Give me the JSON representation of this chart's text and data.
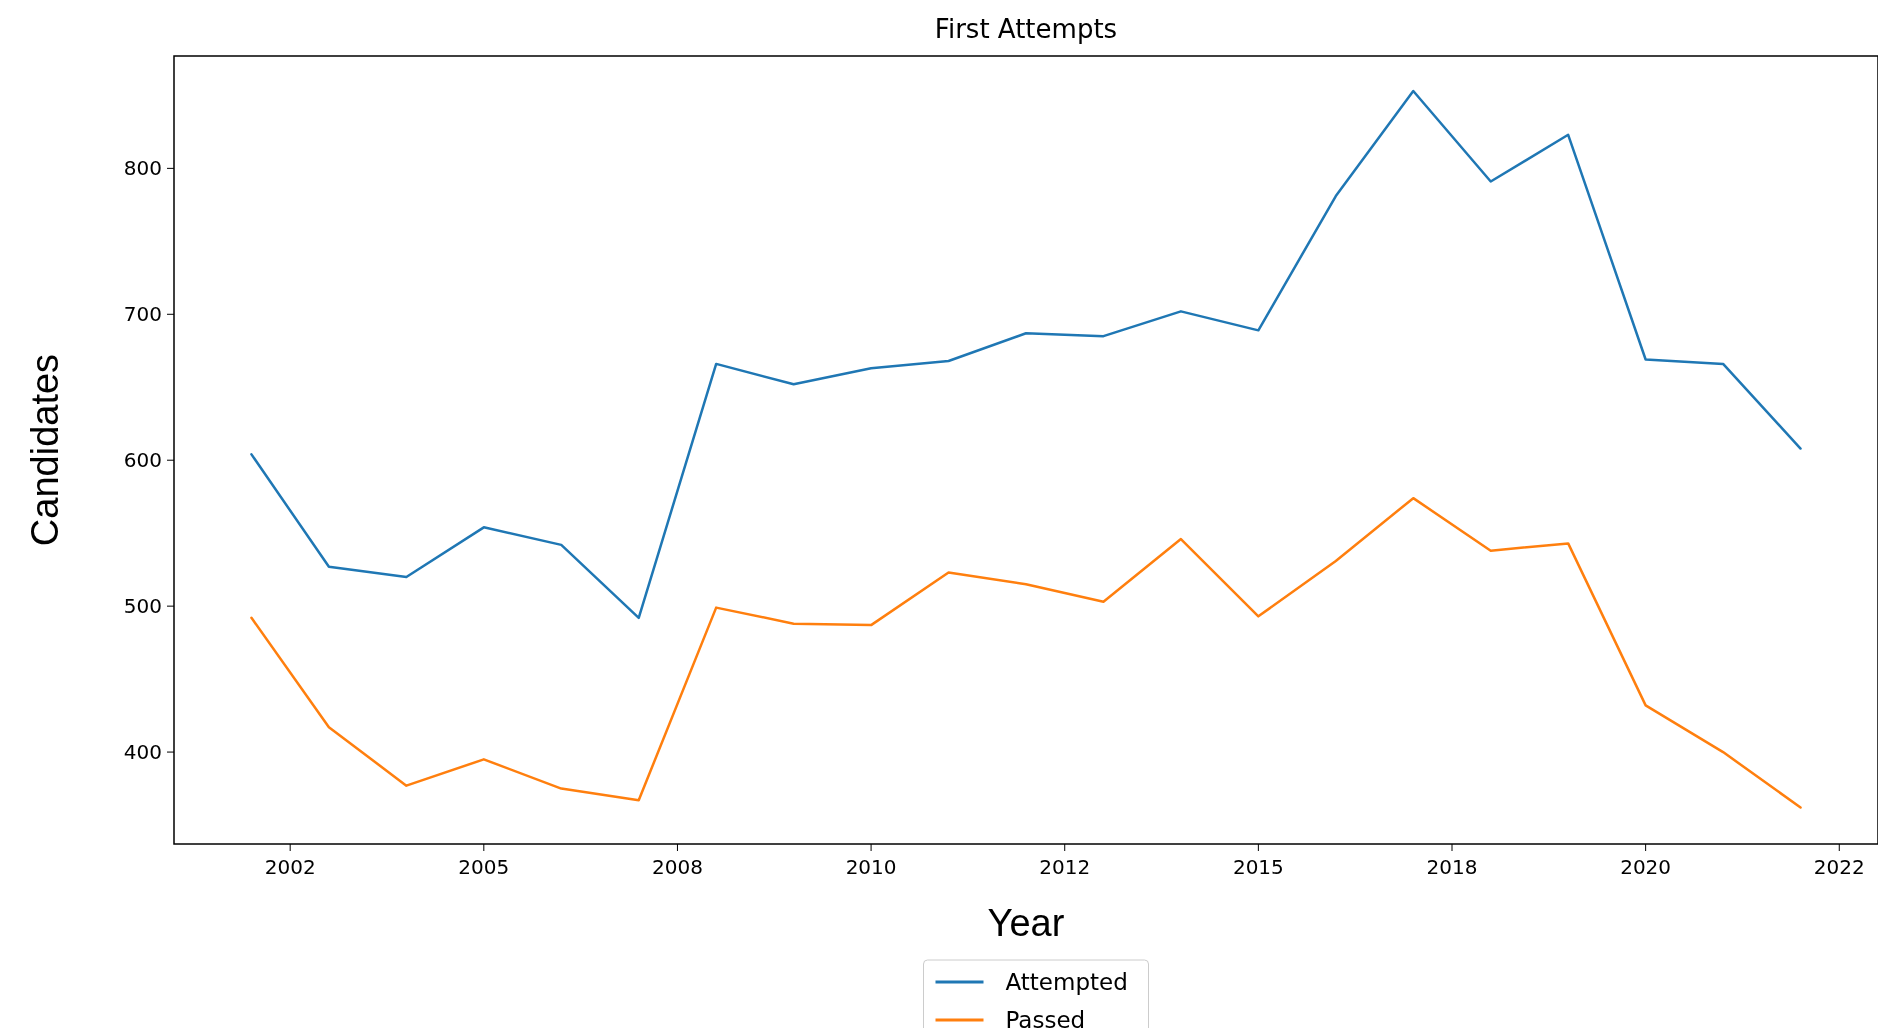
{
  "chart_data": {
    "type": "line",
    "title": "First Attempts",
    "xlabel": "Year",
    "ylabel": "Candidates",
    "x": [
      2002,
      2003,
      2004,
      2005,
      2006,
      2007,
      2008,
      2009,
      2010,
      2011,
      2012,
      2013,
      2014,
      2015,
      2016,
      2017,
      2018,
      2019,
      2020,
      2021,
      2022
    ],
    "series": [
      {
        "name": "Attempted",
        "color": "#1f77b4",
        "values": [
          604,
          527,
          520,
          554,
          542,
          492,
          666,
          652,
          663,
          668,
          687,
          685,
          702,
          689,
          781,
          853,
          791,
          823,
          669,
          666,
          608
        ]
      },
      {
        "name": "Passed",
        "color": "#ff7f0e",
        "values": [
          492,
          417,
          377,
          395,
          375,
          367,
          499,
          488,
          487,
          523,
          515,
          503,
          546,
          493,
          531,
          574,
          538,
          543,
          432,
          400,
          362
        ]
      }
    ],
    "xlim": [
      2001,
      2023
    ],
    "xticks": [
      {
        "value": 2002.5,
        "label": "2002"
      },
      2005,
      {
        "value": 2007.5,
        "label": "2008"
      },
      2010,
      {
        "value": 2012.5,
        "label": "2012"
      },
      2015,
      {
        "value": 2017.5,
        "label": "2018"
      },
      2020,
      {
        "value": 2022.5,
        "label": "2022"
      }
    ],
    "ylim": [
      337,
      877
    ],
    "yticks": [
      400,
      500,
      600,
      700,
      800
    ],
    "legend": "bottom",
    "grid": false,
    "line_style": "solid",
    "marker": "none"
  }
}
